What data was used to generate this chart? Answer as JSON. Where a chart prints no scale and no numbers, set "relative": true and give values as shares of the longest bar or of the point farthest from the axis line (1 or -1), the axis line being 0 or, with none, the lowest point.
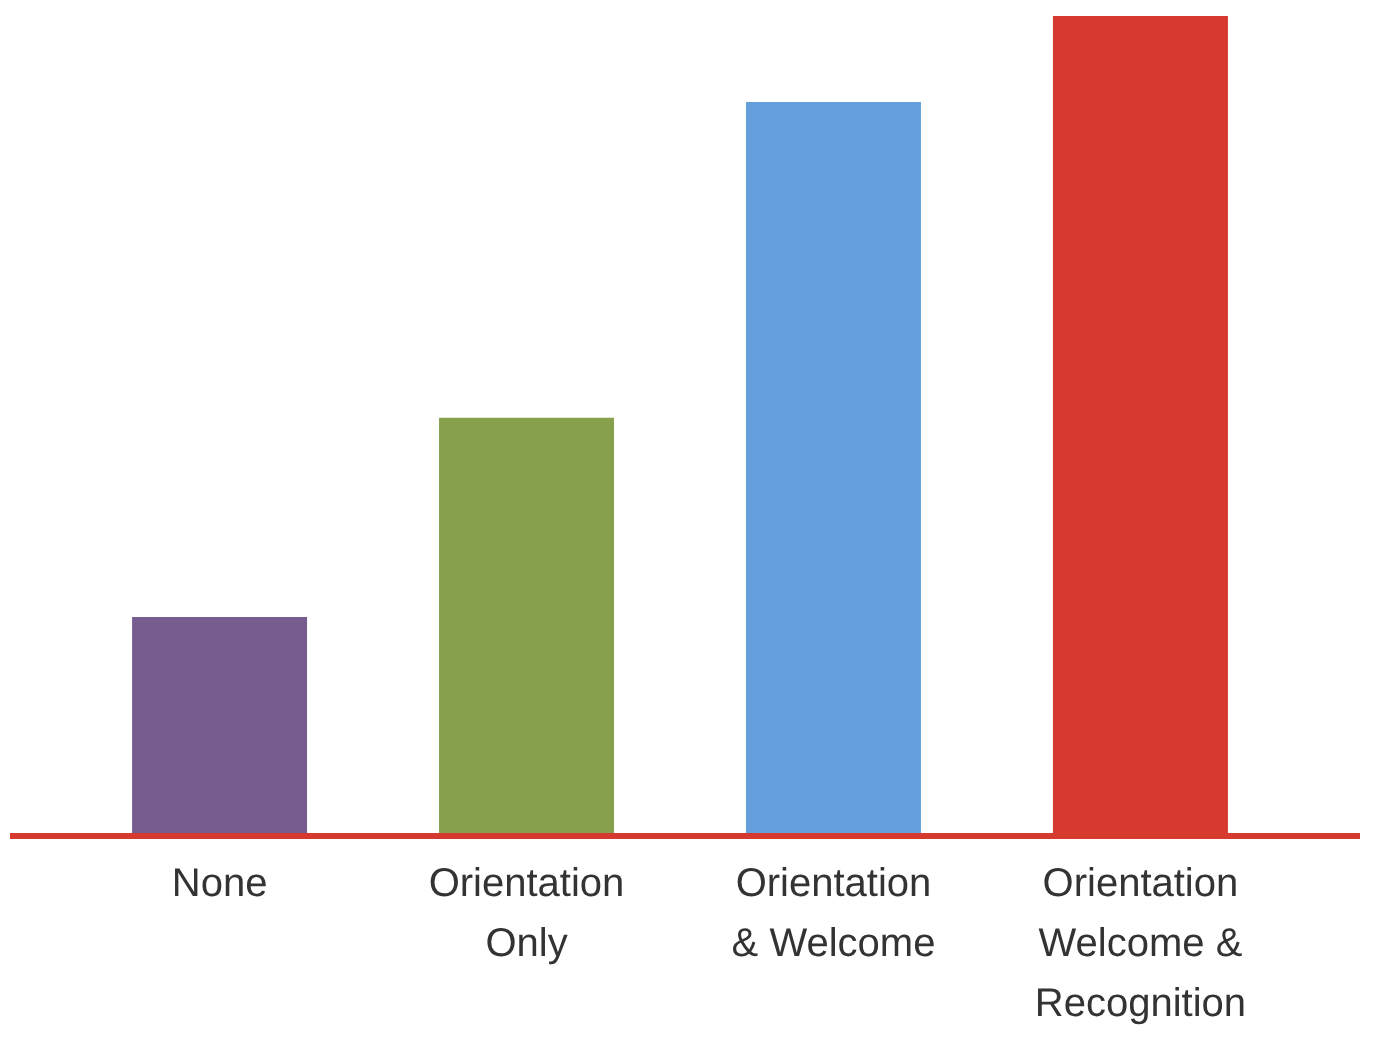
{
  "chart_data": {
    "type": "bar",
    "relative": true,
    "categories": [
      "None",
      "Orientation Only",
      "Orientation & Welcome",
      "Orientation Welcome & Recognition"
    ],
    "values": [
      0.267,
      0.51,
      0.895,
      1
    ],
    "colors": [
      "#775c8f",
      "#86a04b",
      "#64a0dc",
      "#d63a2f"
    ]
  }
}
